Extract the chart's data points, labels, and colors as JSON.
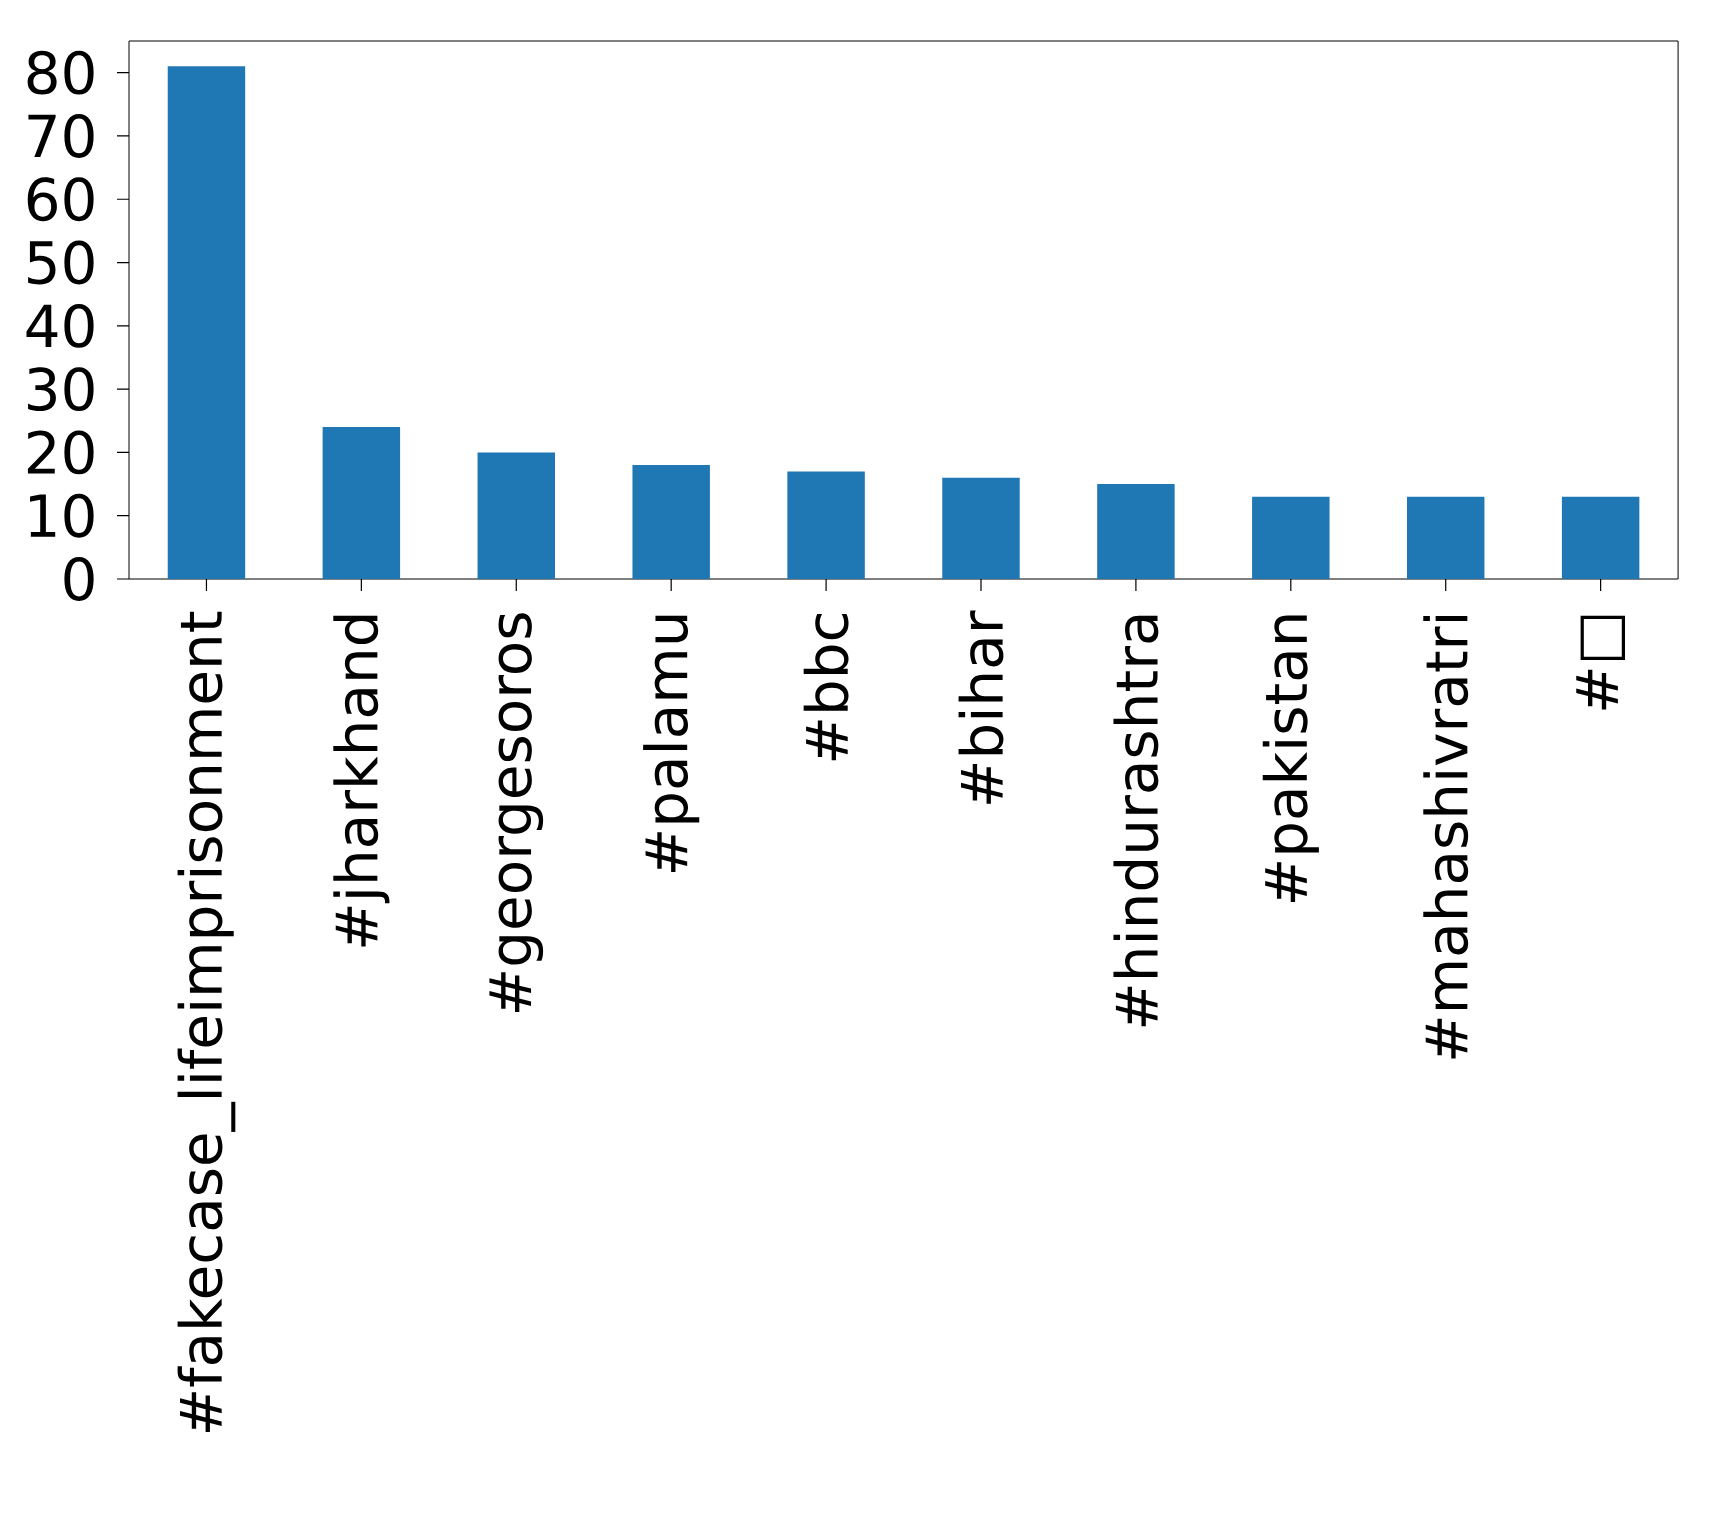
{
  "chart_data": {
    "type": "bar",
    "categories": [
      "#fakecase_lifeimprisonment",
      "#jharkhand",
      "#georgesoros",
      "#palamu",
      "#bbc",
      "#bihar",
      "#hindurashtra",
      "#pakistan",
      "#mahashivratri",
      "#□"
    ],
    "values": [
      81,
      24,
      20,
      18,
      17,
      16,
      15,
      13,
      13,
      13
    ],
    "color": "#1f77b4",
    "ylim": [
      0,
      85
    ],
    "yticks": [
      0,
      10,
      20,
      30,
      40,
      50,
      60,
      70,
      80
    ]
  }
}
